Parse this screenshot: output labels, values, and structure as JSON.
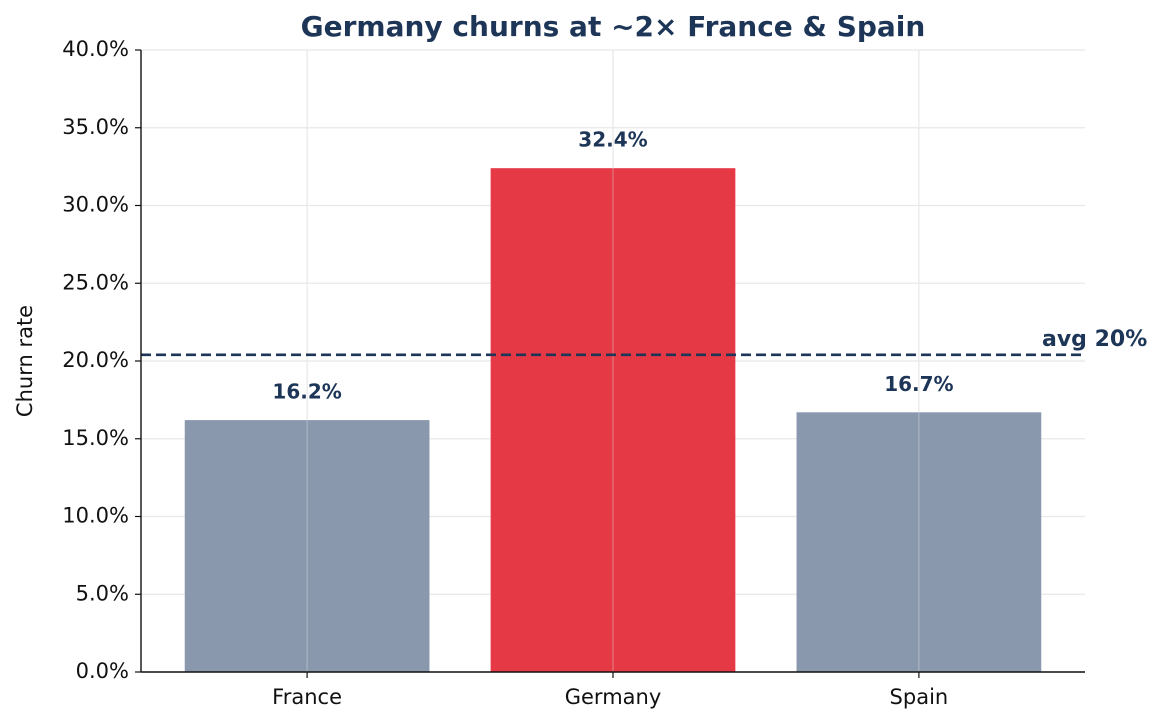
{
  "chart_data": {
    "type": "bar",
    "title": "Germany churns at ~2× France & Spain",
    "y_label": "Churn rate",
    "categories": [
      "France",
      "Germany",
      "Spain"
    ],
    "values": [
      16.2,
      32.4,
      16.7
    ],
    "value_labels": [
      "16.2%",
      "32.4%",
      "16.7%"
    ],
    "colors": [
      "#8a98ae",
      "#e63946",
      "#8a98ae"
    ],
    "ylim": [
      0,
      40
    ],
    "yticks": [
      {
        "value": 0,
        "label": "0.0%"
      },
      {
        "value": 5,
        "label": "5.0%"
      },
      {
        "value": 10,
        "label": "10.0%"
      },
      {
        "value": 15,
        "label": "15.0%"
      },
      {
        "value": 20,
        "label": "20.0%"
      },
      {
        "value": 25,
        "label": "25.0%"
      },
      {
        "value": 30,
        "label": "30.0%"
      },
      {
        "value": 35,
        "label": "35.0%"
      },
      {
        "value": 40,
        "label": "40.0%"
      }
    ],
    "grid": true,
    "reference_line": {
      "value": 20.4,
      "label": "avg 20%",
      "color": "#1d3557"
    }
  }
}
